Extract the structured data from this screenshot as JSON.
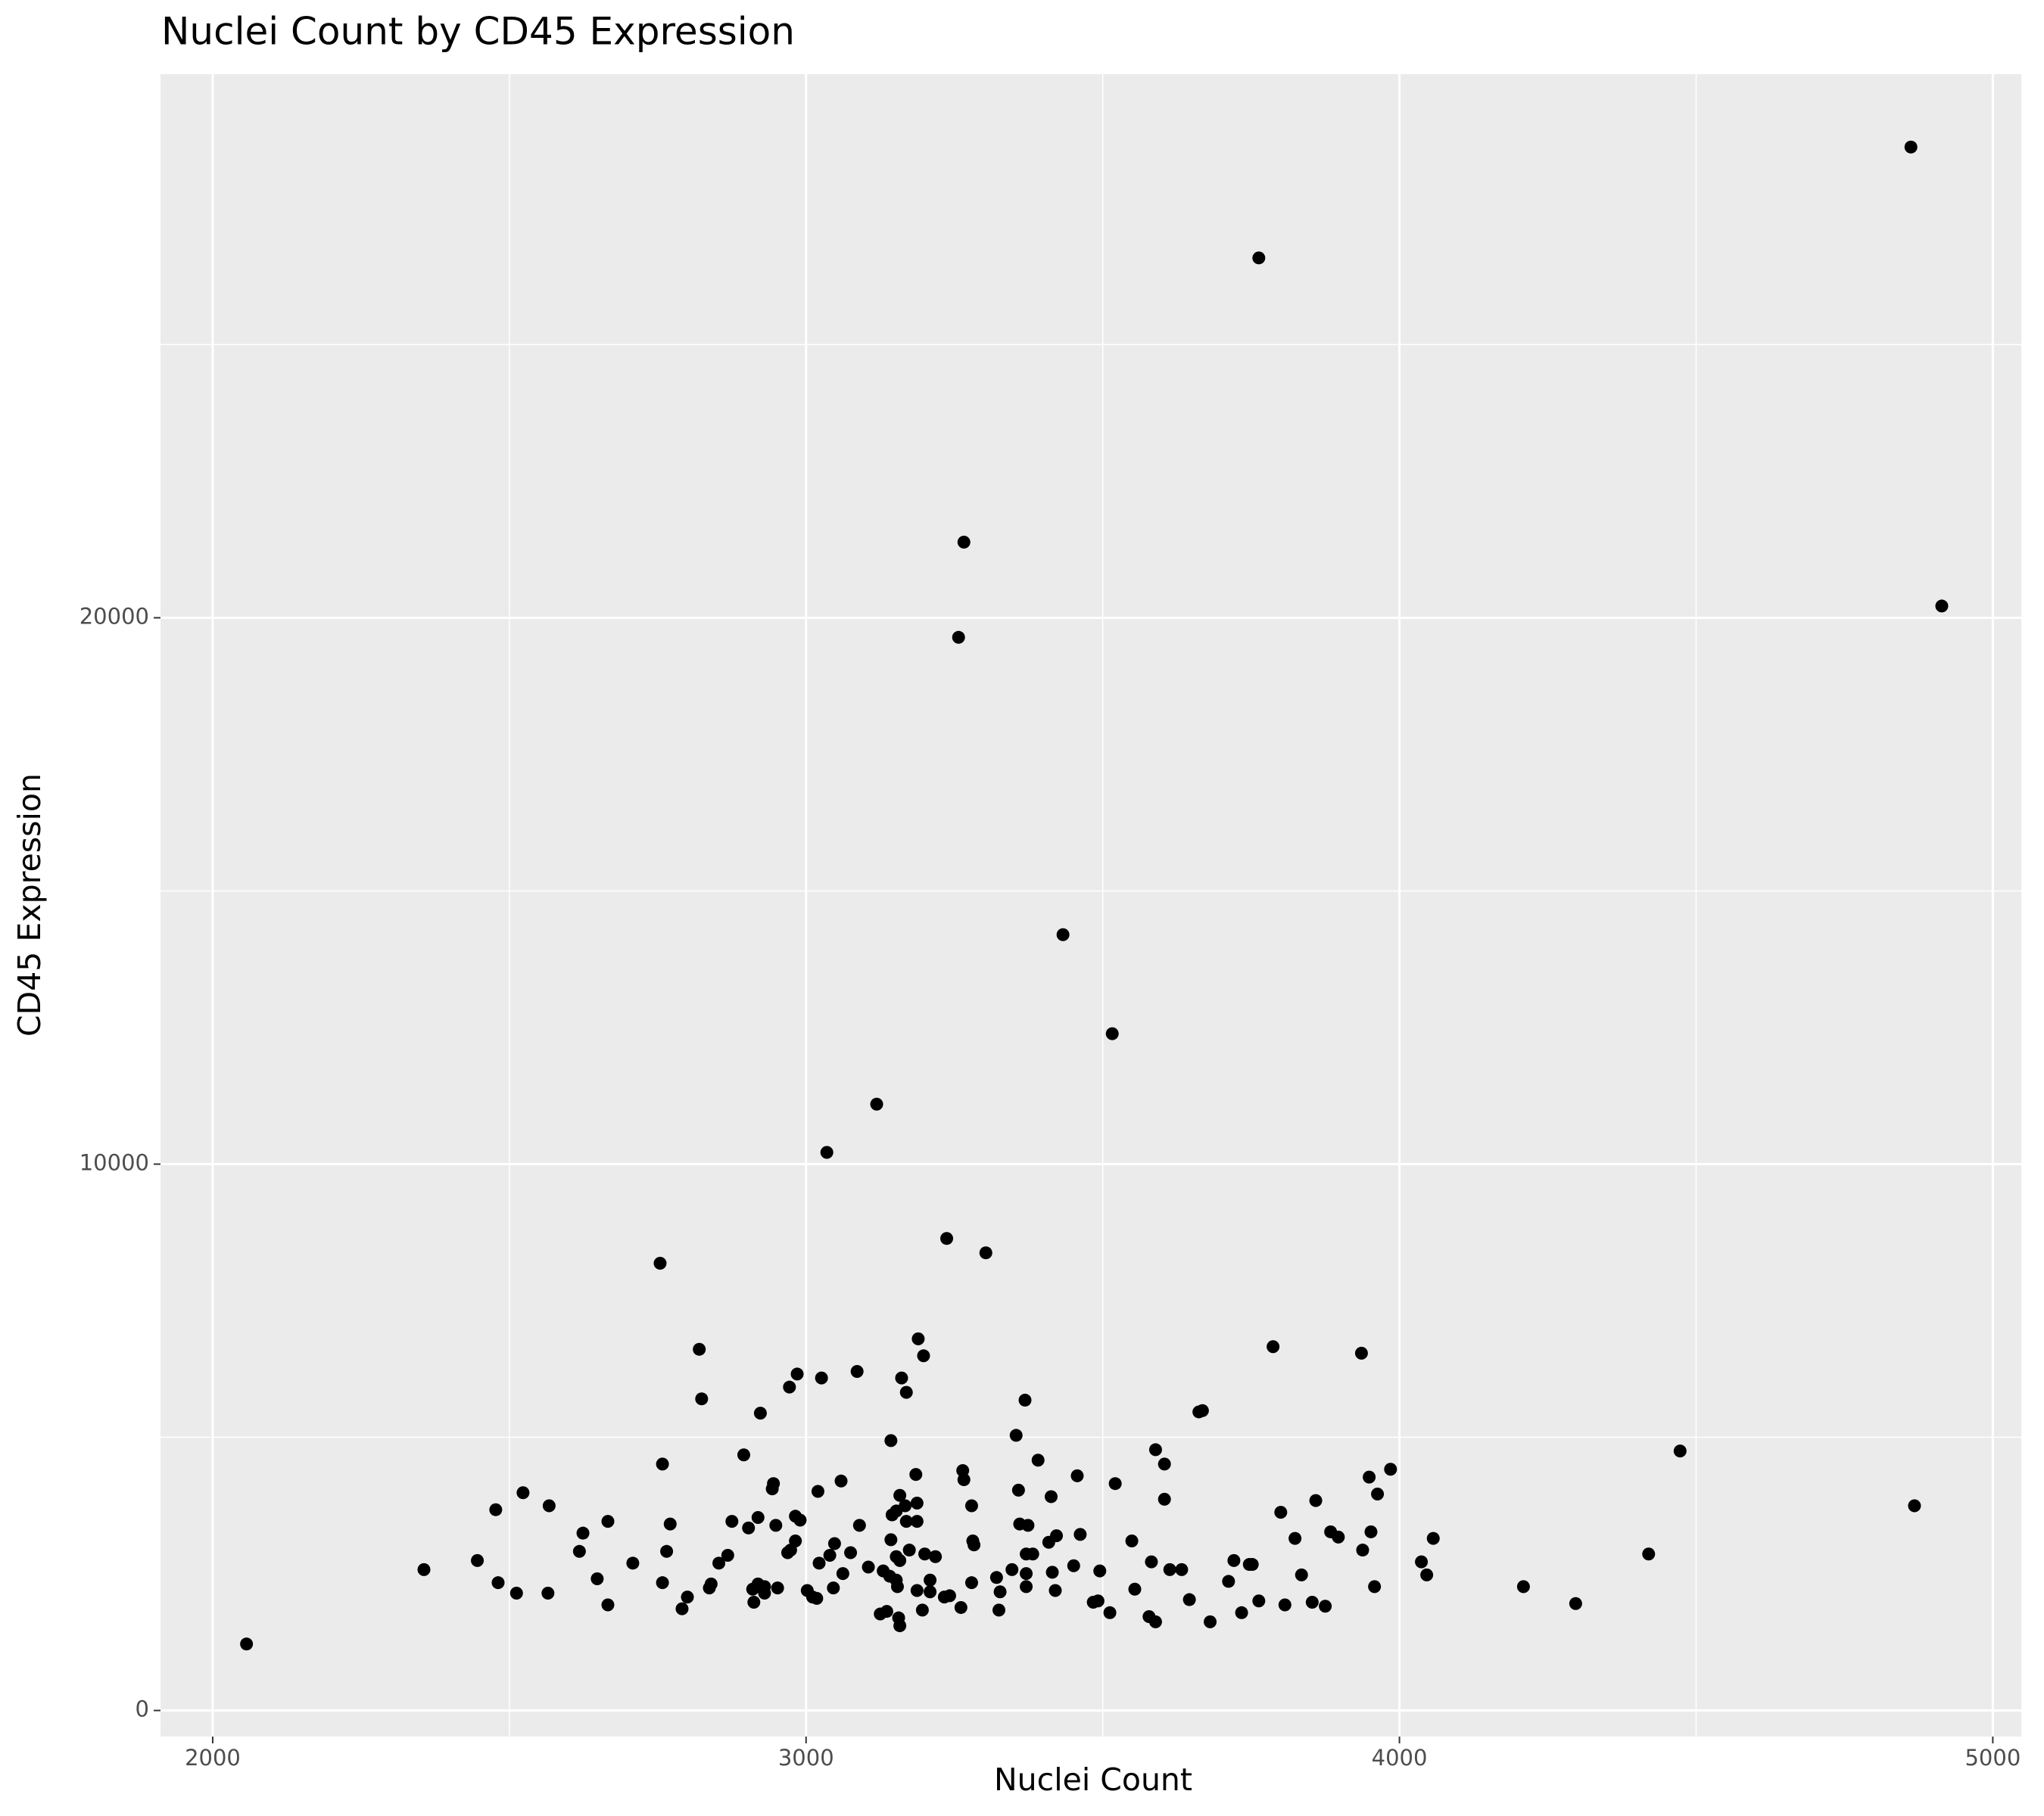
{
  "chart_data": {
    "type": "scatter",
    "title": "Nuclei Count by CD45 Expression",
    "x_label": "Nuclei Count",
    "y_label": "CD45 Expression",
    "x": [
      4862,
      3763,
      3266,
      4914,
      3257,
      3433,
      3516,
      3119,
      3035,
      3237,
      3303,
      2754,
      2820,
      3189,
      3198,
      3787,
      3936,
      2985,
      3026,
      3086,
      2972,
      3161,
      3169,
      2824,
      3369,
      2923,
      3662,
      3668,
      3354,
      3143,
      3589,
      4473,
      2895,
      2758,
      3391,
      3604,
      3985,
      3264,
      3949,
      3457,
      3185,
      3266,
      2945,
      3059,
      3521,
      2943,
      3020,
      2523,
      3358,
      3158,
      3413,
      3963,
      3859,
      3604,
      2567,
      3187,
      3279,
      4868,
      2477,
      3167,
      3152,
      3145,
      3800,
      2982,
      2919,
      2666,
      2875,
      2990,
      2771,
      3169,
      3187,
      2949,
      2903,
      3090,
      3360,
      3374,
      2624,
      3952,
      3884,
      3897,
      3824,
      3422,
      3462,
      3549,
      4057,
      3143,
      3281,
      2982,
      3048,
      3283,
      3409,
      3174,
      2765,
      2618,
      2969,
      2974,
      3938,
      4420,
      3075,
      3040,
      2868,
      3371,
      3382,
      3200,
      3218,
      3152,
      2446,
      3721,
      3752,
      2708,
      2853,
      3022,
      3158,
      3451,
      3747,
      4037,
      2356,
      3105,
      3130,
      3347,
      3495,
      3582,
      3613,
      3633,
      3062,
      3141,
      3415,
      3371,
      3835,
      4046,
      2481,
      2648,
      2758,
      2840,
      2837,
      2919,
      2910,
      2930,
      2952,
      3002,
      3046,
      3152,
      3154,
      3209,
      3187,
      3209,
      3279,
      3321,
      3327,
      3371,
      3420,
      3554,
      3712,
      3958,
      4209,
      2512,
      2565,
      2800,
      2930,
      3011,
      3018,
      3233,
      3242,
      2912,
      2666,
      3484,
      3492,
      3646,
      3763,
      3807,
      3853,
      3875,
      4297,
      2791,
      3261,
      3196,
      3325,
      3512,
      3125,
      3136,
      3156,
      3578,
      3589,
      3681,
      3734,
      3158,
      2057
    ],
    "y": [
      28616,
      26587,
      21384,
      20215,
      19642,
      14200,
      12387,
      11098,
      10215,
      8640,
      8377,
      8186,
      6611,
      6802,
      6492,
      6659,
      6539,
      6158,
      6086,
      6205,
      5919,
      6086,
      5823,
      5704,
      5680,
      5442,
      5465,
      5489,
      5036,
      4940,
      4773,
      4749,
      4678,
      4511,
      4582,
      4511,
      4415,
      4391,
      4272,
      4296,
      4320,
      4224,
      4153,
      4200,
      4153,
      4057,
      4010,
      3986,
      4033,
      3938,
      3914,
      3962,
      3842,
      3866,
      3747,
      3795,
      3747,
      3747,
      3675,
      3747,
      3651,
      3580,
      3628,
      3556,
      3532,
      3461,
      3461,
      3484,
      3413,
      3461,
      3461,
      3389,
      3341,
      3389,
      3413,
      3389,
      3246,
      3270,
      3270,
      3174,
      3150,
      3198,
      3222,
      3103,
      3150,
      3126,
      3103,
      3103,
      3055,
      3031,
      3079,
      2936,
      2912,
      2912,
      2888,
      2936,
      2936,
      2864,
      2888,
      2840,
      2840,
      2864,
      2864,
      2864,
      2816,
      2816,
      2745,
      2745,
      2673,
      2697,
      2697,
      2697,
      2745,
      2649,
      2673,
      2721,
      2578,
      2625,
      2554,
      2578,
      2554,
      2721,
      2578,
      2578,
      2506,
      2458,
      2530,
      2506,
      2482,
      2482,
      2339,
      2411,
      2339,
      2315,
      2243,
      2315,
      2220,
      2267,
      2243,
      2196,
      2243,
      2387,
      2267,
      2387,
      2196,
      2172,
      2339,
      2434,
      2172,
      2267,
      2196,
      2220,
      2363,
      2267,
      2267,
      2148,
      2148,
      2076,
      2148,
      2076,
      2052,
      2076,
      2100,
      1981,
      1933,
      1981,
      2005,
      2029,
      2005,
      1933,
      1981,
      1909,
      1957,
      1862,
      1885,
      1838,
      1838,
      1790,
      1766,
      1814,
      1695,
      1718,
      1623,
      1623,
      1790,
      1551,
      1217
    ],
    "color": "#000000",
    "background": "#ebebeb",
    "grid": true,
    "xlim": [
      1912,
      5048
    ],
    "ylim": [
      -477,
      29950
    ],
    "xticks": [
      2000,
      3000,
      4000,
      5000
    ],
    "yticks": [
      0,
      10000,
      20000
    ],
    "minor_xticks": [
      2500,
      3500,
      4500
    ],
    "minor_yticks": [
      5000,
      15000,
      25000
    ]
  }
}
